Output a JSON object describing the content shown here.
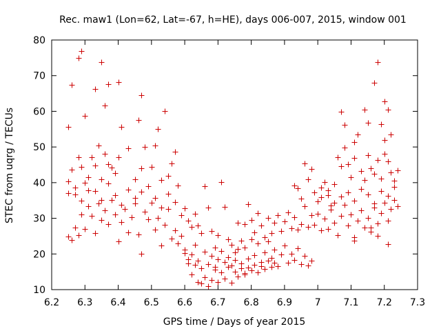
{
  "chart_data": {
    "type": "scatter",
    "title": "Rec. maw1 (Lon=62, Lat=-67, h=HE), days 006-007, 2015, window 001",
    "xlabel": "GPS time / Days of year 2015",
    "ylabel": "STEC from uqrg / TECUs",
    "xlim": [
      6.2,
      7.3
    ],
    "ylim": [
      10,
      80
    ],
    "xticks": [
      "6.2",
      "6.3",
      "6.4",
      "6.5",
      "6.6",
      "6.7",
      "6.8",
      "6.9",
      "7",
      "7.1",
      "7.2",
      "7.3"
    ],
    "yticks": [
      "10",
      "20",
      "30",
      "40",
      "50",
      "60",
      "70",
      "80"
    ],
    "grid": false,
    "marker": "+",
    "color": "#cc0000",
    "series": [
      {
        "points": [
          [
            6.25,
            55.7
          ],
          [
            6.26,
            67.4
          ],
          [
            6.28,
            75.0
          ],
          [
            6.29,
            76.9
          ],
          [
            6.3,
            58.7
          ],
          [
            6.33,
            66.3
          ],
          [
            6.35,
            73.9
          ],
          [
            6.36,
            61.7
          ],
          [
            6.37,
            67.6
          ],
          [
            6.4,
            68.3
          ],
          [
            6.47,
            64.6
          ],
          [
            6.54,
            60.0
          ],
          [
            6.25,
            40.3
          ],
          [
            6.25,
            37.1
          ],
          [
            6.26,
            43.6
          ],
          [
            6.27,
            36.6
          ],
          [
            6.28,
            47.2
          ],
          [
            6.29,
            44.5
          ],
          [
            6.3,
            40.0
          ],
          [
            6.31,
            37.9
          ],
          [
            6.32,
            47.1
          ],
          [
            6.33,
            44.8
          ],
          [
            6.34,
            50.5
          ],
          [
            6.35,
            40.9
          ],
          [
            6.36,
            48.0
          ],
          [
            6.37,
            45.2
          ],
          [
            6.38,
            44.3
          ],
          [
            6.39,
            42.6
          ],
          [
            6.4,
            47.1
          ],
          [
            6.41,
            55.6
          ],
          [
            6.43,
            49.6
          ],
          [
            6.45,
            41.0
          ],
          [
            6.46,
            57.6
          ],
          [
            6.47,
            44.0
          ],
          [
            6.48,
            50.1
          ],
          [
            6.5,
            44.4
          ],
          [
            6.51,
            50.5
          ],
          [
            6.52,
            55.0
          ],
          [
            6.53,
            40.7
          ],
          [
            6.55,
            42.0
          ],
          [
            6.56,
            45.4
          ],
          [
            6.57,
            48.6
          ],
          [
            6.58,
            39.2
          ],
          [
            6.25,
            24.8
          ],
          [
            6.26,
            23.9
          ],
          [
            6.27,
            27.4
          ],
          [
            6.28,
            25.2
          ],
          [
            6.29,
            31.1
          ],
          [
            6.3,
            27.0
          ],
          [
            6.31,
            33.4
          ],
          [
            6.32,
            30.7
          ],
          [
            6.33,
            25.8
          ],
          [
            6.34,
            34.1
          ],
          [
            6.35,
            29.6
          ],
          [
            6.36,
            32.2
          ],
          [
            6.37,
            28.4
          ],
          [
            6.38,
            35.1
          ],
          [
            6.39,
            31.0
          ],
          [
            6.4,
            23.5
          ],
          [
            6.41,
            28.9
          ],
          [
            6.42,
            32.6
          ],
          [
            6.43,
            26.1
          ],
          [
            6.44,
            30.3
          ],
          [
            6.45,
            35.8
          ],
          [
            6.46,
            25.4
          ],
          [
            6.47,
            20.1
          ],
          [
            6.48,
            31.8
          ],
          [
            6.49,
            29.7
          ],
          [
            6.5,
            34.4
          ],
          [
            6.51,
            26.9
          ],
          [
            6.52,
            30.2
          ],
          [
            6.53,
            22.4
          ],
          [
            6.54,
            28.1
          ],
          [
            6.55,
            32.7
          ],
          [
            6.56,
            24.3
          ],
          [
            6.57,
            26.6
          ],
          [
            6.58,
            23.0
          ],
          [
            6.59,
            30.9
          ],
          [
            6.27,
            38.7
          ],
          [
            6.29,
            34.9
          ],
          [
            6.31,
            41.5
          ],
          [
            6.33,
            37.6
          ],
          [
            6.35,
            35.2
          ],
          [
            6.37,
            39.8
          ],
          [
            6.39,
            36.4
          ],
          [
            6.41,
            33.7
          ],
          [
            6.43,
            38.1
          ],
          [
            6.45,
            34.2
          ],
          [
            6.47,
            37.4
          ],
          [
            6.49,
            39.0
          ],
          [
            6.51,
            35.7
          ],
          [
            6.53,
            33.1
          ],
          [
            6.55,
            36.8
          ],
          [
            6.57,
            34.6
          ],
          [
            6.59,
            25.1
          ],
          [
            6.6,
            21.3
          ],
          [
            6.61,
            18.6
          ],
          [
            6.62,
            14.2
          ],
          [
            6.63,
            16.9
          ],
          [
            6.64,
            12.1
          ],
          [
            6.65,
            11.7
          ],
          [
            6.66,
            13.4
          ],
          [
            6.67,
            10.9
          ],
          [
            6.68,
            12.8
          ],
          [
            6.69,
            15.6
          ],
          [
            6.7,
            12.2
          ],
          [
            6.71,
            14.8
          ],
          [
            6.72,
            13.1
          ],
          [
            6.73,
            16.4
          ],
          [
            6.74,
            11.9
          ],
          [
            6.75,
            15.1
          ],
          [
            6.76,
            13.7
          ],
          [
            6.77,
            17.3
          ],
          [
            6.78,
            14.2
          ],
          [
            6.6,
            32.8
          ],
          [
            6.61,
            29.4
          ],
          [
            6.62,
            27.6
          ],
          [
            6.63,
            31.2
          ],
          [
            6.64,
            28.0
          ],
          [
            6.65,
            25.9
          ],
          [
            6.66,
            39.0
          ],
          [
            6.67,
            33.0
          ],
          [
            6.68,
            26.4
          ],
          [
            6.69,
            21.7
          ],
          [
            6.7,
            25.3
          ],
          [
            6.71,
            40.2
          ],
          [
            6.72,
            33.2
          ],
          [
            6.73,
            24.1
          ],
          [
            6.74,
            22.6
          ],
          [
            6.75,
            20.5
          ],
          [
            6.76,
            28.8
          ],
          [
            6.77,
            23.7
          ],
          [
            6.6,
            20.3
          ],
          [
            6.61,
            17.4
          ],
          [
            6.62,
            19.8
          ],
          [
            6.63,
            22.6
          ],
          [
            6.64,
            18.2
          ],
          [
            6.65,
            15.9
          ],
          [
            6.66,
            20.7
          ],
          [
            6.67,
            17.1
          ],
          [
            6.68,
            19.4
          ],
          [
            6.69,
            16.3
          ],
          [
            6.7,
            18.6
          ],
          [
            6.71,
            20.9
          ],
          [
            6.72,
            17.8
          ],
          [
            6.73,
            19.1
          ],
          [
            6.74,
            16.7
          ],
          [
            6.75,
            18.3
          ],
          [
            6.76,
            21.4
          ],
          [
            6.77,
            16.0
          ],
          [
            6.78,
            21.8
          ],
          [
            6.79,
            18.7
          ],
          [
            6.8,
            24.2
          ],
          [
            6.81,
            19.6
          ],
          [
            6.82,
            22.9
          ],
          [
            6.83,
            17.7
          ],
          [
            6.84,
            20.4
          ],
          [
            6.85,
            23.6
          ],
          [
            6.86,
            18.9
          ],
          [
            6.87,
            21.2
          ],
          [
            6.88,
            16.5
          ],
          [
            6.89,
            19.9
          ],
          [
            6.9,
            22.3
          ],
          [
            6.91,
            17.5
          ],
          [
            6.92,
            20.1
          ],
          [
            6.93,
            18.4
          ],
          [
            6.94,
            21.6
          ],
          [
            6.95,
            17.2
          ],
          [
            6.96,
            19.5
          ],
          [
            6.97,
            16.8
          ],
          [
            6.98,
            18.1
          ],
          [
            6.78,
            28.4
          ],
          [
            6.79,
            33.9
          ],
          [
            6.8,
            29.6
          ],
          [
            6.81,
            26.1
          ],
          [
            6.82,
            31.4
          ],
          [
            6.83,
            27.9
          ],
          [
            6.84,
            24.6
          ],
          [
            6.85,
            30.2
          ],
          [
            6.86,
            25.8
          ],
          [
            6.87,
            28.7
          ],
          [
            6.88,
            30.9
          ],
          [
            6.89,
            26.4
          ],
          [
            6.9,
            29.1
          ],
          [
            6.91,
            31.7
          ],
          [
            6.92,
            27.2
          ],
          [
            6.93,
            30.4
          ],
          [
            6.94,
            26.9
          ],
          [
            6.95,
            28.3
          ],
          [
            6.96,
            33.4
          ],
          [
            6.97,
            27.6
          ],
          [
            6.98,
            30.8
          ],
          [
            6.78,
            14.6
          ],
          [
            6.79,
            16.2
          ],
          [
            6.8,
            15.4
          ],
          [
            6.81,
            17.0
          ],
          [
            6.82,
            14.9
          ],
          [
            6.83,
            16.6
          ],
          [
            6.84,
            15.8
          ],
          [
            6.85,
            18.2
          ],
          [
            6.86,
            16.4
          ],
          [
            6.87,
            17.6
          ],
          [
            6.93,
            39.2
          ],
          [
            6.94,
            38.4
          ],
          [
            6.95,
            35.6
          ],
          [
            6.96,
            45.4
          ],
          [
            6.97,
            40.9
          ],
          [
            6.98,
            43.8
          ],
          [
            6.99,
            37.2
          ],
          [
            7.0,
            34.7
          ],
          [
            7.01,
            38.6
          ],
          [
            7.02,
            40.1
          ],
          [
            7.03,
            36.5
          ],
          [
            7.04,
            33.6
          ],
          [
            7.05,
            39.5
          ],
          [
            7.06,
            47.2
          ],
          [
            7.07,
            44.6
          ],
          [
            7.08,
            49.8
          ],
          [
            7.09,
            45.1
          ],
          [
            7.1,
            41.6
          ],
          [
            7.11,
            46.9
          ],
          [
            7.12,
            53.5
          ],
          [
            7.13,
            43.3
          ],
          [
            7.14,
            40.8
          ],
          [
            7.15,
            47.8
          ],
          [
            7.16,
            44.0
          ],
          [
            7.17,
            42.4
          ],
          [
            7.18,
            46.3
          ],
          [
            7.19,
            41.2
          ],
          [
            7.2,
            48.1
          ],
          [
            7.21,
            45.9
          ],
          [
            7.22,
            42.8
          ],
          [
            7.23,
            40.6
          ],
          [
            7.24,
            43.4
          ],
          [
            6.99,
            28.2
          ],
          [
            7.0,
            31.3
          ],
          [
            7.01,
            26.7
          ],
          [
            7.02,
            29.9
          ],
          [
            7.03,
            27.1
          ],
          [
            7.04,
            32.5
          ],
          [
            7.05,
            28.8
          ],
          [
            7.06,
            25.2
          ],
          [
            7.07,
            30.6
          ],
          [
            7.08,
            33.7
          ],
          [
            7.09,
            27.9
          ],
          [
            7.1,
            31.0
          ],
          [
            7.11,
            24.6
          ],
          [
            7.12,
            29.3
          ],
          [
            7.13,
            32.2
          ],
          [
            7.14,
            27.5
          ],
          [
            7.15,
            30.1
          ],
          [
            7.16,
            26.2
          ],
          [
            7.17,
            33.0
          ],
          [
            7.18,
            28.6
          ],
          [
            7.19,
            31.5
          ],
          [
            7.2,
            34.3
          ],
          [
            7.21,
            29.4
          ],
          [
            7.22,
            32.7
          ],
          [
            7.23,
            35.1
          ],
          [
            7.24,
            33.4
          ],
          [
            7.01,
            35.9
          ],
          [
            7.03,
            37.8
          ],
          [
            7.05,
            34.4
          ],
          [
            7.07,
            36.1
          ],
          [
            7.09,
            37.3
          ],
          [
            7.11,
            35.0
          ],
          [
            7.13,
            38.2
          ],
          [
            7.15,
            36.6
          ],
          [
            7.17,
            34.1
          ],
          [
            7.19,
            37.6
          ],
          [
            7.21,
            36.3
          ],
          [
            7.23,
            38.9
          ],
          [
            7.11,
            23.8
          ],
          [
            7.16,
            27.4
          ],
          [
            7.18,
            25.1
          ],
          [
            7.21,
            22.7
          ],
          [
            7.07,
            59.8
          ],
          [
            7.08,
            56.2
          ],
          [
            7.11,
            51.3
          ],
          [
            7.14,
            60.4
          ],
          [
            7.15,
            56.8
          ],
          [
            7.17,
            68.1
          ],
          [
            7.18,
            73.8
          ],
          [
            7.19,
            56.5
          ],
          [
            7.2,
            62.8
          ],
          [
            7.21,
            60.4
          ],
          [
            7.22,
            53.5
          ],
          [
            7.2,
            52.0
          ]
        ]
      }
    ]
  }
}
